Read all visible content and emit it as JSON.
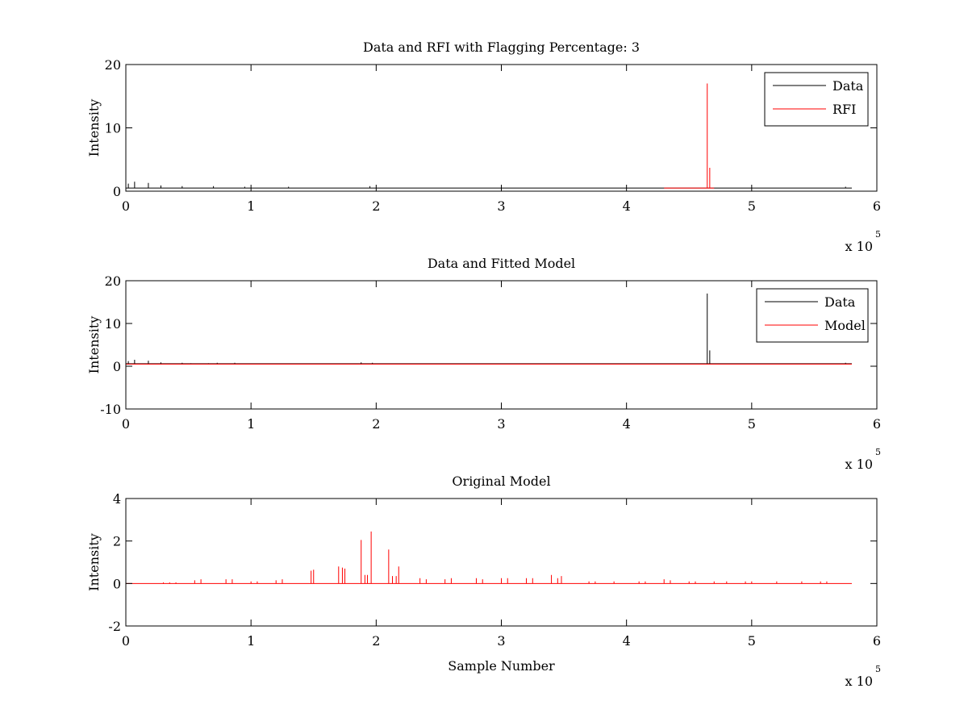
{
  "chart_data": [
    {
      "type": "line",
      "title": "Data and RFI with Flagging Percentage: 3",
      "xlabel": "",
      "ylabel": "Intensity",
      "xlim": [
        0,
        6
      ],
      "ylim": [
        0,
        20
      ],
      "x_multiplier": "x 10",
      "x_exponent": "5",
      "xticks": [
        "0",
        "1",
        "2",
        "3",
        "4",
        "5",
        "6"
      ],
      "yticks": [
        "0",
        "10",
        "20"
      ],
      "legend": {
        "position": "top-right",
        "entries": [
          "Data",
          "RFI"
        ]
      },
      "series": [
        {
          "name": "Data",
          "color": "#000000",
          "baseline": 0.5,
          "range": [
            0,
            5.8
          ],
          "spikes": [
            [
              0.02,
              1.2
            ],
            [
              0.07,
              1.5
            ],
            [
              0.18,
              1.3
            ],
            [
              0.28,
              0.9
            ],
            [
              0.45,
              0.8
            ],
            [
              0.7,
              0.8
            ],
            [
              0.95,
              0.7
            ],
            [
              1.3,
              0.7
            ],
            [
              1.95,
              0.8
            ],
            [
              5.75,
              0.7
            ]
          ]
        },
        {
          "name": "RFI",
          "color": "#ff0000",
          "segment": [
            4.3,
            4.7
          ],
          "spikes": [
            [
              4.645,
              17.0
            ],
            [
              4.665,
              3.7
            ]
          ]
        }
      ]
    },
    {
      "type": "line",
      "title": "Data and Fitted Model",
      "xlabel": "",
      "ylabel": "Intensity",
      "xlim": [
        0,
        6
      ],
      "ylim": [
        -10,
        20
      ],
      "x_multiplier": "x 10",
      "x_exponent": "5",
      "xticks": [
        "0",
        "1",
        "2",
        "3",
        "4",
        "5",
        "6"
      ],
      "yticks": [
        "-10",
        "0",
        "10",
        "20"
      ],
      "legend": {
        "position": "top-right",
        "entries": [
          "Data",
          "Model"
        ]
      },
      "series": [
        {
          "name": "Data",
          "color": "#000000",
          "baseline": 0.6,
          "range": [
            0,
            5.8
          ],
          "spikes": [
            [
              0.02,
              1.2
            ],
            [
              0.07,
              1.5
            ],
            [
              0.18,
              1.3
            ],
            [
              0.28,
              0.9
            ],
            [
              0.45,
              0.8
            ],
            [
              0.52,
              0.7
            ],
            [
              0.66,
              0.7
            ],
            [
              0.73,
              0.8
            ],
            [
              0.87,
              0.8
            ],
            [
              1.88,
              0.9
            ],
            [
              1.97,
              0.8
            ],
            [
              4.645,
              17.0
            ],
            [
              4.665,
              3.7
            ],
            [
              5.75,
              0.8
            ]
          ]
        },
        {
          "name": "Model",
          "color": "#ff0000",
          "baseline": 0.5,
          "range": [
            0,
            5.8
          ],
          "spikes": []
        }
      ]
    },
    {
      "type": "line",
      "title": "Original Model",
      "xlabel": "Sample Number",
      "ylabel": "Intensity",
      "xlim": [
        0,
        6
      ],
      "ylim": [
        -2,
        4
      ],
      "x_multiplier": "x 10",
      "x_exponent": "5",
      "xticks": [
        "0",
        "1",
        "2",
        "3",
        "4",
        "5",
        "6"
      ],
      "yticks": [
        "-2",
        "0",
        "2",
        "4"
      ],
      "legend": null,
      "series": [
        {
          "color": "#ff0000",
          "baseline": 0.0,
          "range": [
            0,
            5.8
          ],
          "spikes": [
            [
              0.3,
              0.05
            ],
            [
              0.35,
              0.05
            ],
            [
              0.4,
              0.05
            ],
            [
              0.55,
              0.15
            ],
            [
              0.6,
              0.2
            ],
            [
              0.8,
              0.2
            ],
            [
              0.85,
              0.2
            ],
            [
              1.0,
              0.1
            ],
            [
              1.05,
              0.1
            ],
            [
              1.2,
              0.15
            ],
            [
              1.25,
              0.2
            ],
            [
              1.48,
              0.6
            ],
            [
              1.5,
              0.65
            ],
            [
              1.7,
              0.8
            ],
            [
              1.73,
              0.75
            ],
            [
              1.75,
              0.7
            ],
            [
              1.88,
              2.05
            ],
            [
              1.91,
              0.4
            ],
            [
              1.93,
              0.4
            ],
            [
              1.96,
              2.45
            ],
            [
              2.1,
              1.6
            ],
            [
              2.13,
              0.35
            ],
            [
              2.16,
              0.35
            ],
            [
              2.18,
              0.8
            ],
            [
              2.35,
              0.25
            ],
            [
              2.4,
              0.2
            ],
            [
              2.55,
              0.2
            ],
            [
              2.6,
              0.25
            ],
            [
              2.8,
              0.25
            ],
            [
              2.85,
              0.2
            ],
            [
              3.0,
              0.25
            ],
            [
              3.05,
              0.25
            ],
            [
              3.2,
              0.25
            ],
            [
              3.25,
              0.25
            ],
            [
              3.4,
              0.4
            ],
            [
              3.45,
              0.25
            ],
            [
              3.48,
              0.35
            ],
            [
              3.7,
              0.1
            ],
            [
              3.75,
              0.1
            ],
            [
              3.9,
              0.1
            ],
            [
              4.1,
              0.1
            ],
            [
              4.15,
              0.1
            ],
            [
              4.3,
              0.2
            ],
            [
              4.35,
              0.15
            ],
            [
              4.5,
              0.1
            ],
            [
              4.55,
              0.1
            ],
            [
              4.7,
              0.1
            ],
            [
              4.8,
              0.1
            ],
            [
              4.95,
              0.1
            ],
            [
              5.0,
              0.1
            ],
            [
              5.2,
              0.1
            ],
            [
              5.4,
              0.1
            ],
            [
              5.55,
              0.1
            ],
            [
              5.6,
              0.1
            ]
          ]
        }
      ]
    }
  ]
}
